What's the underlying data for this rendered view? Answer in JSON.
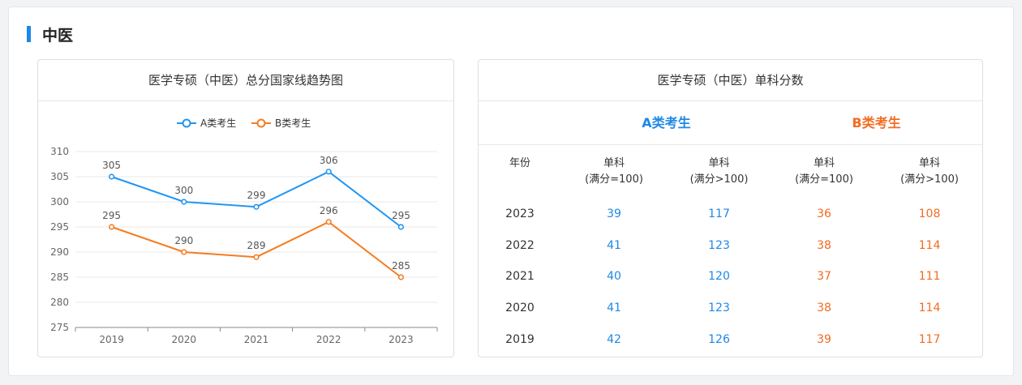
{
  "section_title": "中医",
  "trend_chart": {
    "header": "医学专硕（中医）总分国家线趋势图"
  },
  "chart_data": {
    "type": "line",
    "title": "医学专硕（中医）总分国家线趋势图",
    "categories": [
      "2019",
      "2020",
      "2021",
      "2022",
      "2023"
    ],
    "series": [
      {
        "name": "A类考生",
        "values": [
          305,
          300,
          299,
          306,
          295
        ],
        "color": "#2196f3"
      },
      {
        "name": "B类考生",
        "values": [
          295,
          290,
          289,
          296,
          285
        ],
        "color": "#f57c20"
      }
    ],
    "ylim": [
      275,
      310
    ],
    "yticks": [
      275,
      280,
      285,
      290,
      295,
      300,
      305,
      310
    ],
    "grid": true,
    "legend": "top-center"
  },
  "score_table": {
    "header": "医学专硕（中医）单科分数",
    "group_a": "A类考生",
    "group_b": "B类考生",
    "col_year": "年份",
    "col_single": "单科",
    "col_full100": "(满分=100)",
    "col_over100": "(满分>100)",
    "rows": [
      {
        "year": "2023",
        "a100": "39",
        "a_over": "117",
        "b100": "36",
        "b_over": "108"
      },
      {
        "year": "2022",
        "a100": "41",
        "a_over": "123",
        "b100": "38",
        "b_over": "114"
      },
      {
        "year": "2021",
        "a100": "40",
        "a_over": "120",
        "b100": "37",
        "b_over": "111"
      },
      {
        "year": "2020",
        "a100": "41",
        "a_over": "123",
        "b100": "38",
        "b_over": "114"
      },
      {
        "year": "2019",
        "a100": "42",
        "a_over": "126",
        "b100": "39",
        "b_over": "117"
      }
    ],
    "colors": {
      "a": "#1e88e5",
      "b": "#f26b21"
    }
  }
}
